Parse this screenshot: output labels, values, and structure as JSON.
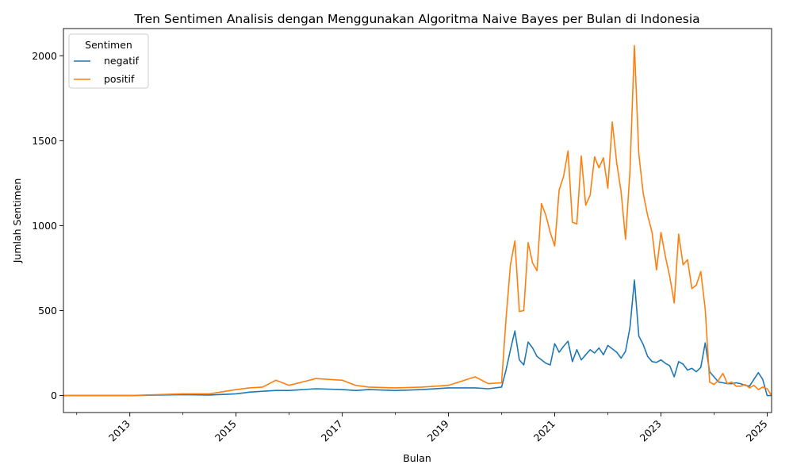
{
  "chart_data": {
    "type": "line",
    "title": "Tren Sentimen Analisis dengan Menggunakan Algoritma Naive Bayes per Bulan di Indonesia",
    "xlabel": "Bulan",
    "ylabel": "Jumlah Sentimen",
    "xlim": [
      "2011-10",
      "2025-02"
    ],
    "ylim": [
      -100,
      2160
    ],
    "x_ticks": [
      "2013",
      "2015",
      "2017",
      "2019",
      "2021",
      "2023",
      "2025"
    ],
    "y_ticks": [
      "0",
      "500",
      "1000",
      "1500",
      "2000"
    ],
    "grid": false,
    "legend": {
      "title": "Sentimen",
      "placement": "top-left"
    },
    "x": [
      "2011-10",
      "2013-01",
      "2014-01",
      "2014-07",
      "2015-01",
      "2015-04",
      "2015-07",
      "2015-10",
      "2016-01",
      "2016-07",
      "2017-01",
      "2017-04",
      "2017-07",
      "2018-01",
      "2018-07",
      "2019-01",
      "2019-07",
      "2019-10",
      "2020-01",
      "2020-02",
      "2020-03",
      "2020-04",
      "2020-05",
      "2020-06",
      "2020-07",
      "2020-08",
      "2020-09",
      "2020-10",
      "2020-11",
      "2020-12",
      "2021-01",
      "2021-02",
      "2021-03",
      "2021-04",
      "2021-05",
      "2021-06",
      "2021-07",
      "2021-08",
      "2021-09",
      "2021-10",
      "2021-11",
      "2021-12",
      "2022-01",
      "2022-02",
      "2022-03",
      "2022-04",
      "2022-05",
      "2022-06",
      "2022-07",
      "2022-08",
      "2022-09",
      "2022-10",
      "2022-11",
      "2022-12",
      "2023-01",
      "2023-02",
      "2023-03",
      "2023-04",
      "2023-05",
      "2023-06",
      "2023-07",
      "2023-08",
      "2023-09",
      "2023-10",
      "2023-11",
      "2023-12",
      "2024-01",
      "2024-02",
      "2024-03",
      "2024-04",
      "2024-05",
      "2024-06",
      "2024-07",
      "2024-08",
      "2024-09",
      "2024-10",
      "2024-11",
      "2024-12",
      "2025-01",
      "2025-02"
    ],
    "series": [
      {
        "name": "negatif",
        "color": "#1f77b4",
        "values": [
          0,
          0,
          5,
          3,
          10,
          20,
          25,
          30,
          30,
          40,
          35,
          30,
          35,
          30,
          35,
          45,
          45,
          40,
          50,
          150,
          270,
          380,
          210,
          180,
          315,
          280,
          230,
          210,
          190,
          180,
          305,
          255,
          290,
          320,
          200,
          270,
          210,
          240,
          270,
          250,
          280,
          240,
          295,
          275,
          255,
          220,
          260,
          400,
          680,
          350,
          300,
          230,
          200,
          195,
          210,
          190,
          175,
          110,
          200,
          185,
          150,
          160,
          140,
          165,
          310,
          140,
          110,
          80,
          75,
          70,
          70,
          75,
          70,
          60,
          55,
          95,
          135,
          95,
          0,
          0
        ]
      },
      {
        "name": "positif",
        "color": "#ff7f0e",
        "values": [
          0,
          0,
          10,
          10,
          35,
          45,
          50,
          90,
          60,
          100,
          90,
          60,
          50,
          45,
          50,
          60,
          110,
          70,
          75,
          450,
          770,
          910,
          495,
          500,
          900,
          780,
          735,
          1130,
          1060,
          960,
          880,
          1210,
          1290,
          1440,
          1020,
          1010,
          1410,
          1120,
          1180,
          1405,
          1340,
          1400,
          1220,
          1610,
          1370,
          1200,
          920,
          1320,
          2060,
          1420,
          1190,
          1060,
          960,
          740,
          960,
          820,
          700,
          545,
          950,
          770,
          800,
          630,
          650,
          730,
          510,
          80,
          65,
          90,
          130,
          70,
          80,
          55,
          55,
          65,
          45,
          60,
          35,
          50,
          40,
          0
        ]
      }
    ]
  }
}
